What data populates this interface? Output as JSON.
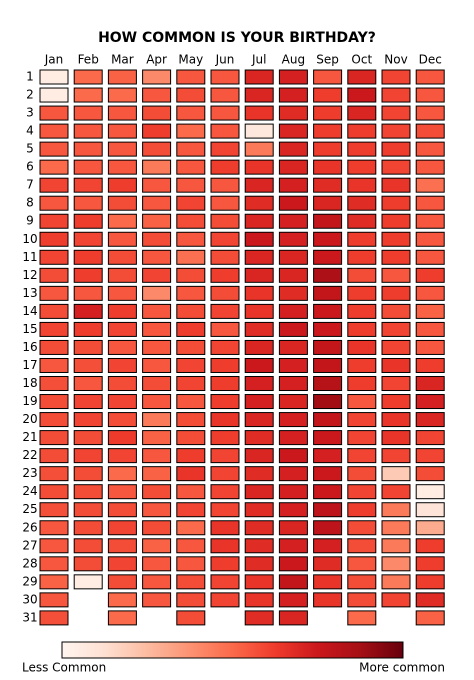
{
  "chart_data": {
    "type": "heatmap",
    "title": "HOW COMMON IS YOUR BIRTHDAY?",
    "categories": [
      "Jan",
      "Feb",
      "Mar",
      "Apr",
      "May",
      "Jun",
      "Jul",
      "Aug",
      "Sep",
      "Oct",
      "Nov",
      "Dec"
    ],
    "rows": [
      1,
      2,
      3,
      4,
      5,
      6,
      7,
      8,
      9,
      10,
      11,
      12,
      13,
      14,
      15,
      16,
      17,
      18,
      19,
      20,
      21,
      22,
      23,
      24,
      25,
      26,
      27,
      28,
      29,
      30,
      31
    ],
    "colors": [
      "#fff5f0",
      "#fee0d2",
      "#fcbba1",
      "#fc9272",
      "#fb6a4a",
      "#ef3b2c",
      "#cb181d",
      "#a50f15",
      "#67000d"
    ],
    "vlim": [
      0,
      1
    ],
    "colorbar_labels": [
      "Less Common",
      "More common"
    ],
    "values": [
      [
        0.05,
        0.05,
        0.55,
        0.55,
        0.55,
        0.5,
        0.6,
        0.55,
        0.6,
        0.62,
        0.6,
        0.58,
        0.55,
        0.58,
        0.6,
        0.58,
        0.55,
        0.57,
        0.58,
        0.58,
        0.58,
        0.58,
        0.57,
        0.58,
        0.57,
        0.55,
        0.55,
        0.55,
        0.52,
        0.55,
        0.57
      ],
      [
        0.5,
        0.5,
        0.55,
        0.55,
        0.55,
        0.55,
        0.6,
        0.55,
        0.62,
        0.6,
        0.62,
        0.62,
        0.55,
        0.72,
        0.62,
        0.58,
        0.57,
        0.55,
        0.6,
        0.6,
        0.58,
        0.6,
        0.58,
        0.58,
        0.58,
        0.58,
        0.58,
        0.58,
        0.05,
        null,
        null
      ],
      [
        0.52,
        0.5,
        0.55,
        0.55,
        0.55,
        0.55,
        0.62,
        0.58,
        0.5,
        0.55,
        0.58,
        0.58,
        0.55,
        0.62,
        0.6,
        0.55,
        0.6,
        0.58,
        0.6,
        0.58,
        0.63,
        0.6,
        0.5,
        0.55,
        0.58,
        0.6,
        0.58,
        0.6,
        0.58,
        0.5,
        0.5
      ],
      [
        0.4,
        0.55,
        0.58,
        0.62,
        0.58,
        0.45,
        0.55,
        0.55,
        0.52,
        0.58,
        0.55,
        0.6,
        0.4,
        0.55,
        0.55,
        0.55,
        0.55,
        0.58,
        0.55,
        0.45,
        0.52,
        0.55,
        0.52,
        0.58,
        0.55,
        0.58,
        0.52,
        0.55,
        0.55,
        0.55,
        null
      ],
      [
        0.55,
        0.58,
        0.55,
        0.5,
        0.55,
        0.55,
        0.55,
        0.6,
        0.58,
        0.55,
        0.48,
        0.58,
        0.55,
        0.58,
        0.62,
        0.58,
        0.6,
        0.6,
        0.55,
        0.58,
        0.58,
        0.62,
        0.65,
        0.55,
        0.6,
        0.5,
        0.55,
        0.55,
        0.58,
        0.58,
        0.58
      ],
      [
        0.55,
        0.55,
        0.55,
        0.55,
        0.6,
        0.62,
        0.55,
        0.55,
        0.58,
        0.6,
        0.58,
        0.62,
        0.58,
        0.6,
        0.55,
        0.6,
        0.62,
        0.62,
        0.62,
        0.65,
        0.62,
        0.6,
        0.6,
        0.6,
        0.6,
        0.65,
        0.65,
        0.62,
        0.6,
        0.6,
        null
      ],
      [
        0.7,
        0.7,
        0.65,
        0.08,
        0.45,
        0.65,
        0.7,
        0.68,
        0.7,
        0.75,
        0.7,
        0.7,
        0.65,
        0.65,
        0.68,
        0.7,
        0.75,
        0.72,
        0.72,
        0.7,
        0.68,
        0.7,
        0.68,
        0.7,
        0.68,
        0.68,
        0.68,
        0.68,
        0.65,
        0.65,
        0.68
      ],
      [
        0.72,
        0.72,
        0.68,
        0.7,
        0.7,
        0.7,
        0.72,
        0.75,
        0.72,
        0.72,
        0.7,
        0.7,
        0.68,
        0.72,
        0.75,
        0.7,
        0.72,
        0.72,
        0.7,
        0.72,
        0.72,
        0.75,
        0.72,
        0.72,
        0.72,
        0.7,
        0.72,
        0.75,
        0.78,
        0.72,
        0.7
      ],
      [
        0.55,
        0.62,
        0.62,
        0.62,
        0.62,
        0.65,
        0.68,
        0.7,
        0.78,
        0.75,
        0.75,
        0.85,
        0.78,
        0.75,
        0.75,
        0.78,
        0.78,
        0.82,
        0.88,
        0.78,
        0.75,
        0.72,
        0.75,
        0.75,
        0.8,
        0.8,
        0.72,
        0.68,
        0.65,
        0.65,
        null
      ],
      [
        0.7,
        0.75,
        0.7,
        0.62,
        0.62,
        0.62,
        0.65,
        0.68,
        0.68,
        0.62,
        0.62,
        0.58,
        0.62,
        0.62,
        0.62,
        0.65,
        0.62,
        0.62,
        0.55,
        0.6,
        0.6,
        0.6,
        0.58,
        0.6,
        0.62,
        0.58,
        0.58,
        0.55,
        0.58,
        0.58,
        0.5
      ],
      [
        0.6,
        0.6,
        0.6,
        0.6,
        0.62,
        0.6,
        0.65,
        0.62,
        0.62,
        0.62,
        0.62,
        0.55,
        0.62,
        0.58,
        0.6,
        0.6,
        0.65,
        0.6,
        0.62,
        0.65,
        0.65,
        0.6,
        0.2,
        0.6,
        0.45,
        0.45,
        0.45,
        0.4,
        0.45,
        0.6,
        null
      ],
      [
        0.55,
        0.55,
        0.55,
        0.58,
        0.55,
        0.55,
        0.48,
        0.55,
        0.55,
        0.55,
        0.55,
        0.62,
        0.55,
        0.52,
        0.55,
        0.55,
        0.62,
        0.7,
        0.72,
        0.7,
        0.6,
        0.6,
        0.58,
        0.05,
        0.1,
        0.3,
        0.62,
        0.62,
        0.62,
        0.68,
        0.52
      ]
    ]
  }
}
